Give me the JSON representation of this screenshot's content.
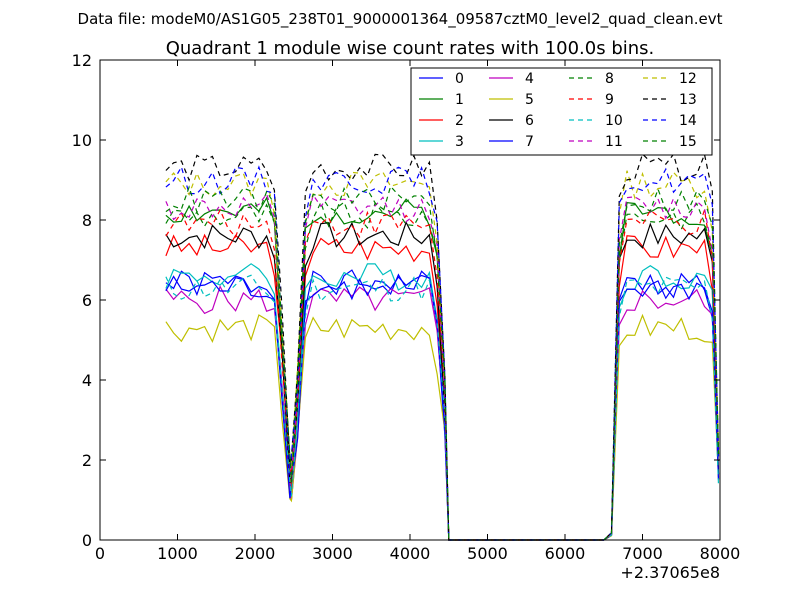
{
  "figure": {
    "suptitle": "Data file: modeM0/AS1G05_238T01_9000001364_09587cztM0_level2_quad_clean.evt",
    "x_offset_label": "+2.37065e8"
  },
  "chart_data": {
    "type": "line",
    "title": "Quadrant 1 module wise count rates with 100.0s bins.",
    "xlabel": "",
    "ylabel": "",
    "xlim": [
      0,
      8000
    ],
    "ylim": [
      0,
      12
    ],
    "x_ticks": [
      "0",
      "1000",
      "2000",
      "3000",
      "4000",
      "5000",
      "6000",
      "7000",
      "8000"
    ],
    "y_ticks": [
      "0",
      "2",
      "4",
      "6",
      "8",
      "10",
      "12"
    ],
    "x_offset": 237065000,
    "grid": false,
    "legend_location": "upper right",
    "legend_columns": 4,
    "series": [
      {
        "name": "0",
        "color": "#0000ff",
        "style": "solid"
      },
      {
        "name": "1",
        "color": "#008000",
        "style": "solid"
      },
      {
        "name": "2",
        "color": "#ff0000",
        "style": "solid"
      },
      {
        "name": "3",
        "color": "#00bfbf",
        "style": "solid"
      },
      {
        "name": "4",
        "color": "#bf00bf",
        "style": "solid"
      },
      {
        "name": "5",
        "color": "#bfbf00",
        "style": "solid"
      },
      {
        "name": "6",
        "color": "#000000",
        "style": "solid"
      },
      {
        "name": "7",
        "color": "#0000ff",
        "style": "solid"
      },
      {
        "name": "8",
        "color": "#008000",
        "style": "dashed"
      },
      {
        "name": "9",
        "color": "#ff0000",
        "style": "dashed"
      },
      {
        "name": "10",
        "color": "#00bfbf",
        "style": "dashed"
      },
      {
        "name": "11",
        "color": "#bf00bf",
        "style": "dashed"
      },
      {
        "name": "12",
        "color": "#bfbf00",
        "style": "dashed"
      },
      {
        "name": "13",
        "color": "#000000",
        "style": "dashed"
      },
      {
        "name": "14",
        "color": "#0000ff",
        "style": "dashed"
      },
      {
        "name": "15",
        "color": "#008000",
        "style": "dashed"
      }
    ],
    "series_levels": [
      6.4,
      8.2,
      7.3,
      6.6,
      6.0,
      5.3,
      7.6,
      6.3,
      8.1,
      7.9,
      6.3,
      8.3,
      8.9,
      9.3,
      9.0,
      8.5
    ],
    "time_bins_x": [
      850,
      950,
      1050,
      1150,
      1250,
      1350,
      1450,
      1550,
      1650,
      1750,
      1850,
      1950,
      2050,
      2150,
      2250,
      2350,
      2450,
      2470,
      2550,
      2650,
      2750,
      2850,
      2950,
      3050,
      3150,
      3250,
      3350,
      3450,
      3550,
      3650,
      3750,
      3850,
      3950,
      4050,
      4150,
      4250,
      4350,
      4450,
      4500,
      4600,
      4700,
      4800,
      4900,
      5000,
      5100,
      5200,
      5300,
      5400,
      5500,
      5600,
      5700,
      5800,
      5900,
      6000,
      6100,
      6200,
      6300,
      6400,
      6500,
      6600,
      6700,
      6800,
      6900,
      7000,
      7100,
      7200,
      7300,
      7400,
      7500,
      7600,
      7700,
      7800,
      7900,
      7980
    ],
    "bin_scale_profile": [
      1.0,
      1.0,
      1.0,
      1.0,
      1.0,
      1.0,
      1.0,
      1.0,
      1.0,
      1.0,
      1.0,
      1.0,
      1.0,
      1.0,
      0.95,
      0.6,
      0.22,
      0.2,
      0.45,
      0.93,
      1.0,
      1.0,
      1.0,
      1.0,
      1.0,
      1.0,
      1.0,
      1.0,
      1.0,
      1.0,
      1.0,
      1.0,
      1.0,
      1.0,
      1.0,
      1.0,
      0.85,
      0.45,
      0.0,
      0.0,
      0.0,
      0.0,
      0.0,
      0.0,
      0.0,
      0.0,
      0.0,
      0.0,
      0.0,
      0.0,
      0.0,
      0.0,
      0.0,
      0.0,
      0.0,
      0.0,
      0.0,
      0.0,
      0.0,
      0.02,
      0.9,
      1.0,
      1.0,
      1.0,
      1.0,
      1.0,
      1.0,
      1.0,
      1.0,
      1.0,
      1.0,
      1.0,
      0.9,
      0.25
    ]
  }
}
